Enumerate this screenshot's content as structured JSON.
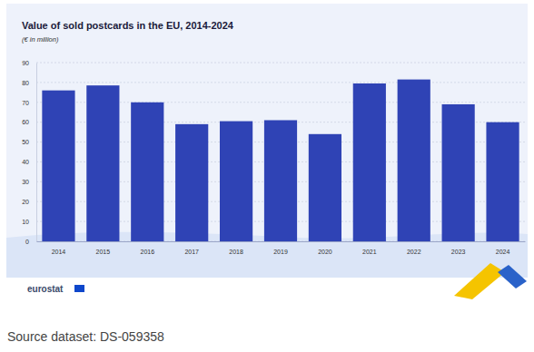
{
  "chart_data": {
    "type": "bar",
    "title": "Value of sold postcards in the EU, 2014-2024",
    "subtitle": "(€ in million)",
    "categories": [
      "2014",
      "2015",
      "2016",
      "2017",
      "2018",
      "2019",
      "2020",
      "2021",
      "2022",
      "2023",
      "2024"
    ],
    "values": [
      76,
      78.5,
      70,
      59,
      60.5,
      61,
      54,
      79.5,
      81.5,
      69,
      60
    ],
    "color": "#2f43b5",
    "ylim": [
      0,
      90
    ],
    "yticks": [
      0,
      10,
      20,
      30,
      40,
      50,
      60,
      70,
      80,
      90
    ],
    "grid": true,
    "logo_text": "eurostat",
    "source": "Source dataset: DS-059358"
  }
}
